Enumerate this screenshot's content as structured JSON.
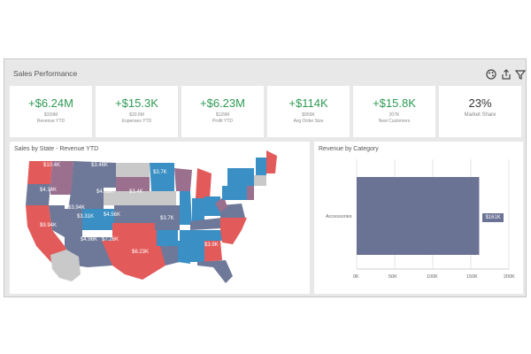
{
  "header": {
    "title": "Sales Performance"
  },
  "toolbar": [
    {
      "icon": "palette-icon"
    },
    {
      "icon": "export-icon"
    },
    {
      "icon": "filter-icon"
    }
  ],
  "kpis": [
    {
      "value": "+$6.24M",
      "sub": "$159M",
      "label": "Revenue YTD"
    },
    {
      "value": "+$15.3K",
      "sub": "$30.6M",
      "label": "Expenses YTD"
    },
    {
      "value": "+$6.23M",
      "sub": "$129M",
      "label": "Profit YTD"
    },
    {
      "value": "+$114K",
      "sub": "$955K",
      "label": "Avg Order Size"
    },
    {
      "value": "+$15.8K",
      "sub": "207K",
      "label": "New Customers"
    },
    {
      "value": "23%",
      "sub": "",
      "label": "Market Share"
    }
  ],
  "map_panel": {
    "title": "Sales by State - Revenue YTD",
    "labels": [
      "$10.4K",
      "$3.46K",
      "$3.7K",
      "$4.14K",
      "$4.03K",
      "$3.4K",
      "$3.94K",
      "$3.31K",
      "$4.56K",
      "$3.7K",
      "$9.94K",
      "$4.96K",
      "$7.26K",
      "$3.9K",
      "$6.23K"
    ]
  },
  "bar_panel": {
    "title": "Revenue by Category",
    "category": "Accessories",
    "value_label": "$161K",
    "ticks": [
      "0K",
      "50K",
      "100K",
      "150K",
      "200K"
    ]
  },
  "chart_data": {
    "type": "bar",
    "title": "Revenue by Category",
    "categories": [
      "Accessories"
    ],
    "values": [
      161
    ],
    "xlim": [
      0,
      200
    ],
    "colors": {
      "bar": "#6b7394"
    }
  }
}
